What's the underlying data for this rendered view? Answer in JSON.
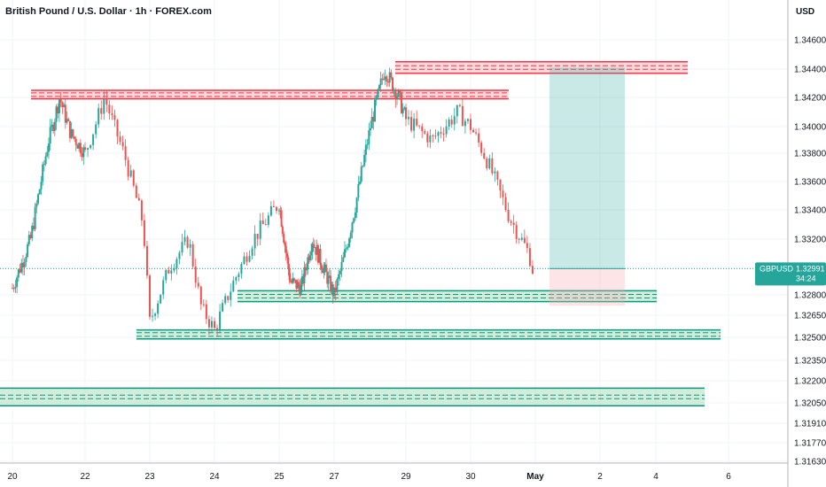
{
  "header": {
    "title": "British Pound / U.S. Dollar · 1h · FOREX.com",
    "currency": "USD"
  },
  "price_tag": {
    "symbol": "GBPUSD",
    "price": "1.32991",
    "countdown": "34:24"
  },
  "chart_data": {
    "type": "candlestick",
    "ylim": [
      1.3155,
      1.3488
    ],
    "y_ticks": [
      "1.34600",
      "1.34400",
      "1.34200",
      "1.34000",
      "1.33800",
      "1.33600",
      "1.33400",
      "1.33200",
      "1.33000",
      "1.32800",
      "1.32650",
      "1.32500",
      "1.32350",
      "1.32200",
      "1.32050",
      "1.31910",
      "1.31770",
      "1.31630"
    ],
    "x_ticks": [
      "20",
      "22",
      "23",
      "24",
      "25",
      "27",
      "29",
      "30",
      "May",
      "2",
      "4",
      "6"
    ],
    "last_price": 1.32991,
    "colors": {
      "up": "#26a69a",
      "down": "#ef5350",
      "resistance": "#f23645",
      "support": "#089981"
    },
    "resistance_zones": [
      {
        "from_x": "~21 Apr",
        "to_x": "~29 Apr",
        "low": 1.3419,
        "high": 1.3425
      },
      {
        "from_x": "~28 Apr",
        "to_x": "~3 May",
        "low": 1.3437,
        "high": 1.3445
      }
    ],
    "support_zones": [
      {
        "from_x": "~24 Apr",
        "to_x": "~3 May",
        "low": 1.3275,
        "high": 1.3283
      },
      {
        "from_x": "~23 Apr",
        "to_x": "~5 May",
        "low": 1.3249,
        "high": 1.3255
      },
      {
        "from_x": "start",
        "to_x": "~5 May",
        "low": 1.3203,
        "high": 1.3215
      }
    ],
    "long_position": {
      "entry": 1.32991,
      "target": 1.3441,
      "stop": 1.3272
    },
    "price_path": [
      {
        "t": "20",
        "p": 1.3285
      },
      {
        "t": "20.5",
        "p": 1.332
      },
      {
        "t": "21",
        "p": 1.339
      },
      {
        "t": "21.3",
        "p": 1.342
      },
      {
        "t": "21.6",
        "p": 1.3395
      },
      {
        "t": "22",
        "p": 1.338
      },
      {
        "t": "22.3",
        "p": 1.342
      },
      {
        "t": "22.6",
        "p": 1.338
      },
      {
        "t": "22.9",
        "p": 1.333
      },
      {
        "t": "23",
        "p": 1.326
      },
      {
        "t": "23.3",
        "p": 1.33
      },
      {
        "t": "23.6",
        "p": 1.332
      },
      {
        "t": "23.8",
        "p": 1.327
      },
      {
        "t": "24",
        "p": 1.3255
      },
      {
        "t": "24.3",
        "p": 1.329
      },
      {
        "t": "24.6",
        "p": 1.332
      },
      {
        "t": "25",
        "p": 1.3345
      },
      {
        "t": "25.4",
        "p": 1.329
      },
      {
        "t": "25.8",
        "p": 1.3285
      },
      {
        "t": "26.2",
        "p": 1.332
      },
      {
        "t": "26.6",
        "p": 1.33
      },
      {
        "t": "27",
        "p": 1.328
      },
      {
        "t": "27.3",
        "p": 1.331
      },
      {
        "t": "27.6",
        "p": 1.3345
      },
      {
        "t": "28",
        "p": 1.34
      },
      {
        "t": "28.4",
        "p": 1.344
      },
      {
        "t": "28.8",
        "p": 1.342
      },
      {
        "t": "29",
        "p": 1.3405
      },
      {
        "t": "29.4",
        "p": 1.339
      },
      {
        "t": "29.8",
        "p": 1.341
      },
      {
        "t": "30",
        "p": 1.34
      },
      {
        "t": "30.3",
        "p": 1.337
      },
      {
        "t": "30.6",
        "p": 1.3335
      },
      {
        "t": "30.9",
        "p": 1.331
      },
      {
        "t": "1",
        "p": 1.329
      }
    ]
  }
}
